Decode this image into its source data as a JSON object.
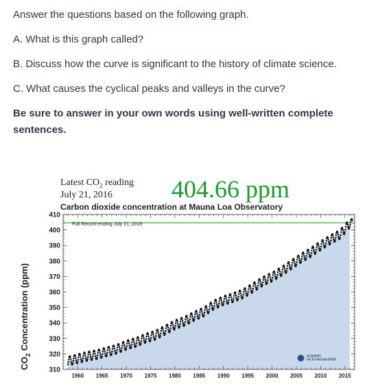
{
  "prompt": {
    "intro": "Answer the questions based on the following graph.",
    "questions": [
      "A. What is this graph called?",
      "B. Discuss how the curve is significant to the history of climate science.",
      "C. What causes the cyclical peaks and valleys in the curve?"
    ],
    "instruction_line1": "Be sure to answer in your own words using well-written complete",
    "instruction_line2": "sentences."
  },
  "figure_header": {
    "latest_label": "Latest CO",
    "latest_label_sub": "2",
    "latest_label_suffix": " reading",
    "date": "July 21, 2016",
    "reading": "404.66 ppm",
    "title": "Carbon dioxide concentration at Mauna Loa Observatory",
    "note": "Full Record ending July 21, 2016",
    "logo_line1": "SCRIPPS",
    "logo_line2": "OCEANOGRAPHY"
  },
  "colors": {
    "fill": "#c9d8ea",
    "points": "#111111",
    "current_line": "#2aa02a",
    "reading_text": "#1a9a2a"
  },
  "chart_data": {
    "type": "scatter",
    "title": "Carbon dioxide concentration at Mauna Loa Observatory",
    "ylabel_prefix": "CO",
    "ylabel_sub": "2",
    "ylabel_suffix": " Concentration (ppm)",
    "xlabel": "",
    "xlim": [
      1957,
      2017
    ],
    "ylim": [
      310,
      410
    ],
    "x_ticks": [
      1960,
      1965,
      1970,
      1975,
      1980,
      1985,
      1990,
      1995,
      2000,
      2005,
      2010,
      2015
    ],
    "y_ticks": [
      310,
      320,
      330,
      340,
      350,
      360,
      370,
      380,
      390,
      400,
      410
    ],
    "reference_line": 404.66,
    "grid": false,
    "series": [
      {
        "x": [
          1958,
          1960,
          1962,
          1964,
          1966,
          1968,
          1970,
          1972,
          1974,
          1976,
          1978,
          1980,
          1982,
          1984,
          1986,
          1988,
          1990,
          1992,
          1994,
          1996,
          1998,
          2000,
          2002,
          2004,
          2006,
          2008,
          2010,
          2012,
          2014,
          2016
        ],
        "y": [
          315.3,
          316.9,
          318.5,
          319.6,
          321.4,
          323.0,
          325.7,
          327.5,
          330.2,
          332.1,
          335.4,
          338.8,
          341.1,
          344.4,
          347.2,
          351.6,
          354.4,
          356.4,
          358.8,
          362.6,
          366.7,
          369.7,
          373.4,
          377.7,
          381.9,
          385.6,
          389.9,
          393.8,
          397.2,
          404.2
        ],
        "seasonal_amplitude": 3
      }
    ]
  }
}
